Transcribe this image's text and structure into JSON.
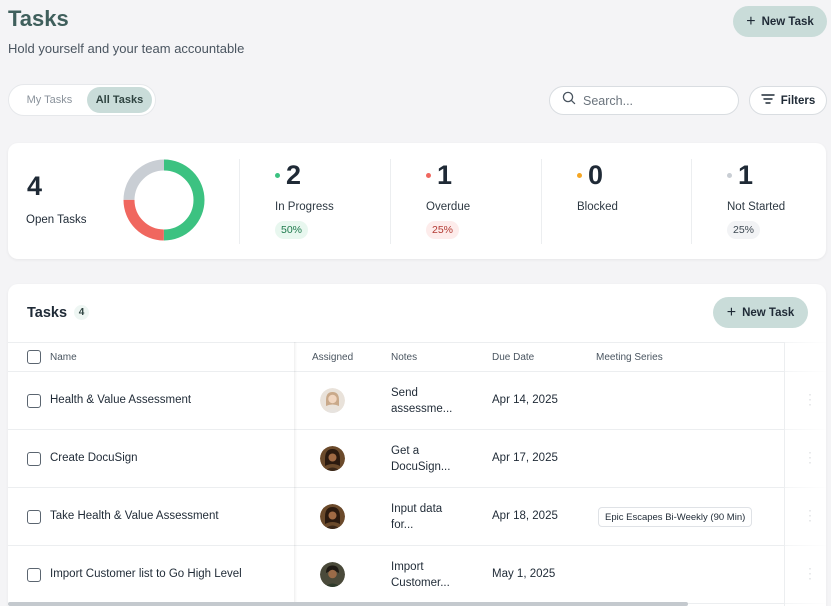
{
  "header": {
    "title": "Tasks",
    "subtitle": "Hold yourself and your team accountable",
    "new_task_label": "New Task"
  },
  "view_toggle": {
    "options": [
      "My Tasks",
      "All Tasks"
    ],
    "selected": "All Tasks"
  },
  "search": {
    "placeholder": "Search...",
    "value": ""
  },
  "filters_label": "Filters",
  "summary": {
    "open_count": "4",
    "open_label": "Open Tasks",
    "donut": {
      "in_progress": 0.5,
      "overdue": 0.25,
      "not_started": 0.25
    },
    "stats": [
      {
        "value": "2",
        "label": "In Progress",
        "percent": "50%",
        "color": "#3cc281"
      },
      {
        "value": "1",
        "label": "Overdue",
        "percent": "25%",
        "color": "#f0675f"
      },
      {
        "value": "0",
        "label": "Blocked",
        "percent": "",
        "color": "#f5a623"
      },
      {
        "value": "1",
        "label": "Not Started",
        "percent": "25%",
        "color": "#c9ced4"
      }
    ]
  },
  "tasks_panel": {
    "title": "Tasks",
    "count": "4",
    "new_task_label": "New Task",
    "columns": [
      "Name",
      "Assigned",
      "Notes",
      "Due Date",
      "Meeting Series"
    ],
    "rows": [
      {
        "name": "Health & Value Assessment",
        "notes": "Send assessme...",
        "due": "Apr 14, 2025",
        "series": "",
        "avatar": "light"
      },
      {
        "name": "Create DocuSign",
        "notes": "Get a DocuSign...",
        "due": "Apr 17, 2025",
        "series": "",
        "avatar": "dark"
      },
      {
        "name": "Take Health & Value Assessment",
        "notes": "Input data for...",
        "due": "Apr 18, 2025",
        "series": "Epic Escapes Bi-Weekly (90 Min)",
        "avatar": "dark"
      },
      {
        "name": "Import Customer list to Go High Level",
        "notes": "Import Customer...",
        "due": "May 1, 2025",
        "series": "",
        "avatar": "dark2"
      }
    ]
  },
  "colors": {
    "accent": "#c9dcd9",
    "title": "#3f5f5c",
    "in_progress": "#3cc281",
    "overdue": "#f0675f",
    "blocked": "#f5a623",
    "not_started": "#c9ced4"
  }
}
